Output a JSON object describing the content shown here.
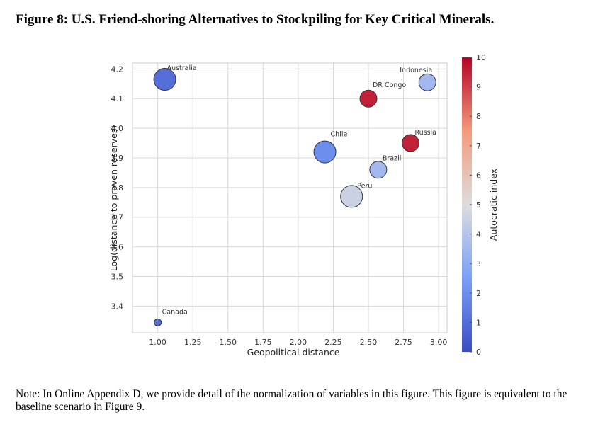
{
  "figure": {
    "title": "Figure 8: U.S. Friend-shoring Alternatives to Stockpiling for Key Critical Minerals.",
    "note": "Note: In Online Appendix D, we provide detail of the normalization of variables in this figure. This figure is equivalent to the baseline scenario in Figure 9."
  },
  "chart_data": {
    "type": "scatter",
    "xlabel": "Geopolitical distance",
    "ylabel": "Log(distance to proven reserves)",
    "xlim": [
      0.82,
      3.06
    ],
    "ylim": [
      3.31,
      4.22
    ],
    "xticks": [
      "1.00",
      "1.25",
      "1.50",
      "1.75",
      "2.00",
      "2.25",
      "2.50",
      "2.75",
      "3.00"
    ],
    "yticks": [
      "3.4",
      "3.5",
      "3.6",
      "3.7",
      "3.8",
      "3.9",
      "4.0",
      "4.1",
      "4.2"
    ],
    "grid": true,
    "colorbar": {
      "label": "Autocratic index",
      "range": [
        0,
        10
      ],
      "ticks": [
        "0",
        "1",
        "2",
        "3",
        "4",
        "5",
        "6",
        "7",
        "8",
        "9",
        "10"
      ],
      "colormap": "coolwarm"
    },
    "points": [
      {
        "label": "Australia",
        "x": 1.05,
        "y": 4.165,
        "autocratic": 1.0,
        "size": "large"
      },
      {
        "label": "Canada",
        "x": 1.0,
        "y": 3.345,
        "autocratic": 1.0,
        "size": "small"
      },
      {
        "label": "Chile",
        "x": 2.19,
        "y": 3.92,
        "autocratic": 2.0,
        "size": "large"
      },
      {
        "label": "Peru",
        "x": 2.38,
        "y": 3.77,
        "autocratic": 4.5,
        "size": "large"
      },
      {
        "label": "Brazil",
        "x": 2.57,
        "y": 3.86,
        "autocratic": 3.5,
        "size": "medium"
      },
      {
        "label": "DR Congo",
        "x": 2.5,
        "y": 4.1,
        "autocratic": 9.5,
        "size": "medium"
      },
      {
        "label": "Russia",
        "x": 2.8,
        "y": 3.95,
        "autocratic": 9.5,
        "size": "medium"
      },
      {
        "label": "Indonesia",
        "x": 2.92,
        "y": 4.155,
        "autocratic": 3.5,
        "size": "medium"
      }
    ]
  }
}
